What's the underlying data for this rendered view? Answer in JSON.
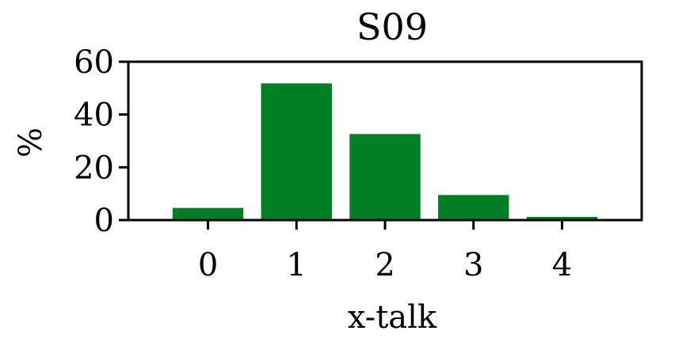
{
  "chart_data": {
    "type": "bar",
    "title": "S09",
    "xlabel": "x-talk",
    "ylabel": "%",
    "categories": [
      "0",
      "1",
      "2",
      "3",
      "4"
    ],
    "values": [
      4.6,
      51.8,
      32.6,
      9.5,
      1.2
    ],
    "ylim": [
      0,
      60
    ],
    "yticks": [
      0,
      20,
      40,
      60
    ],
    "bar_color": "#007f25",
    "grid": false,
    "legend": "none"
  }
}
